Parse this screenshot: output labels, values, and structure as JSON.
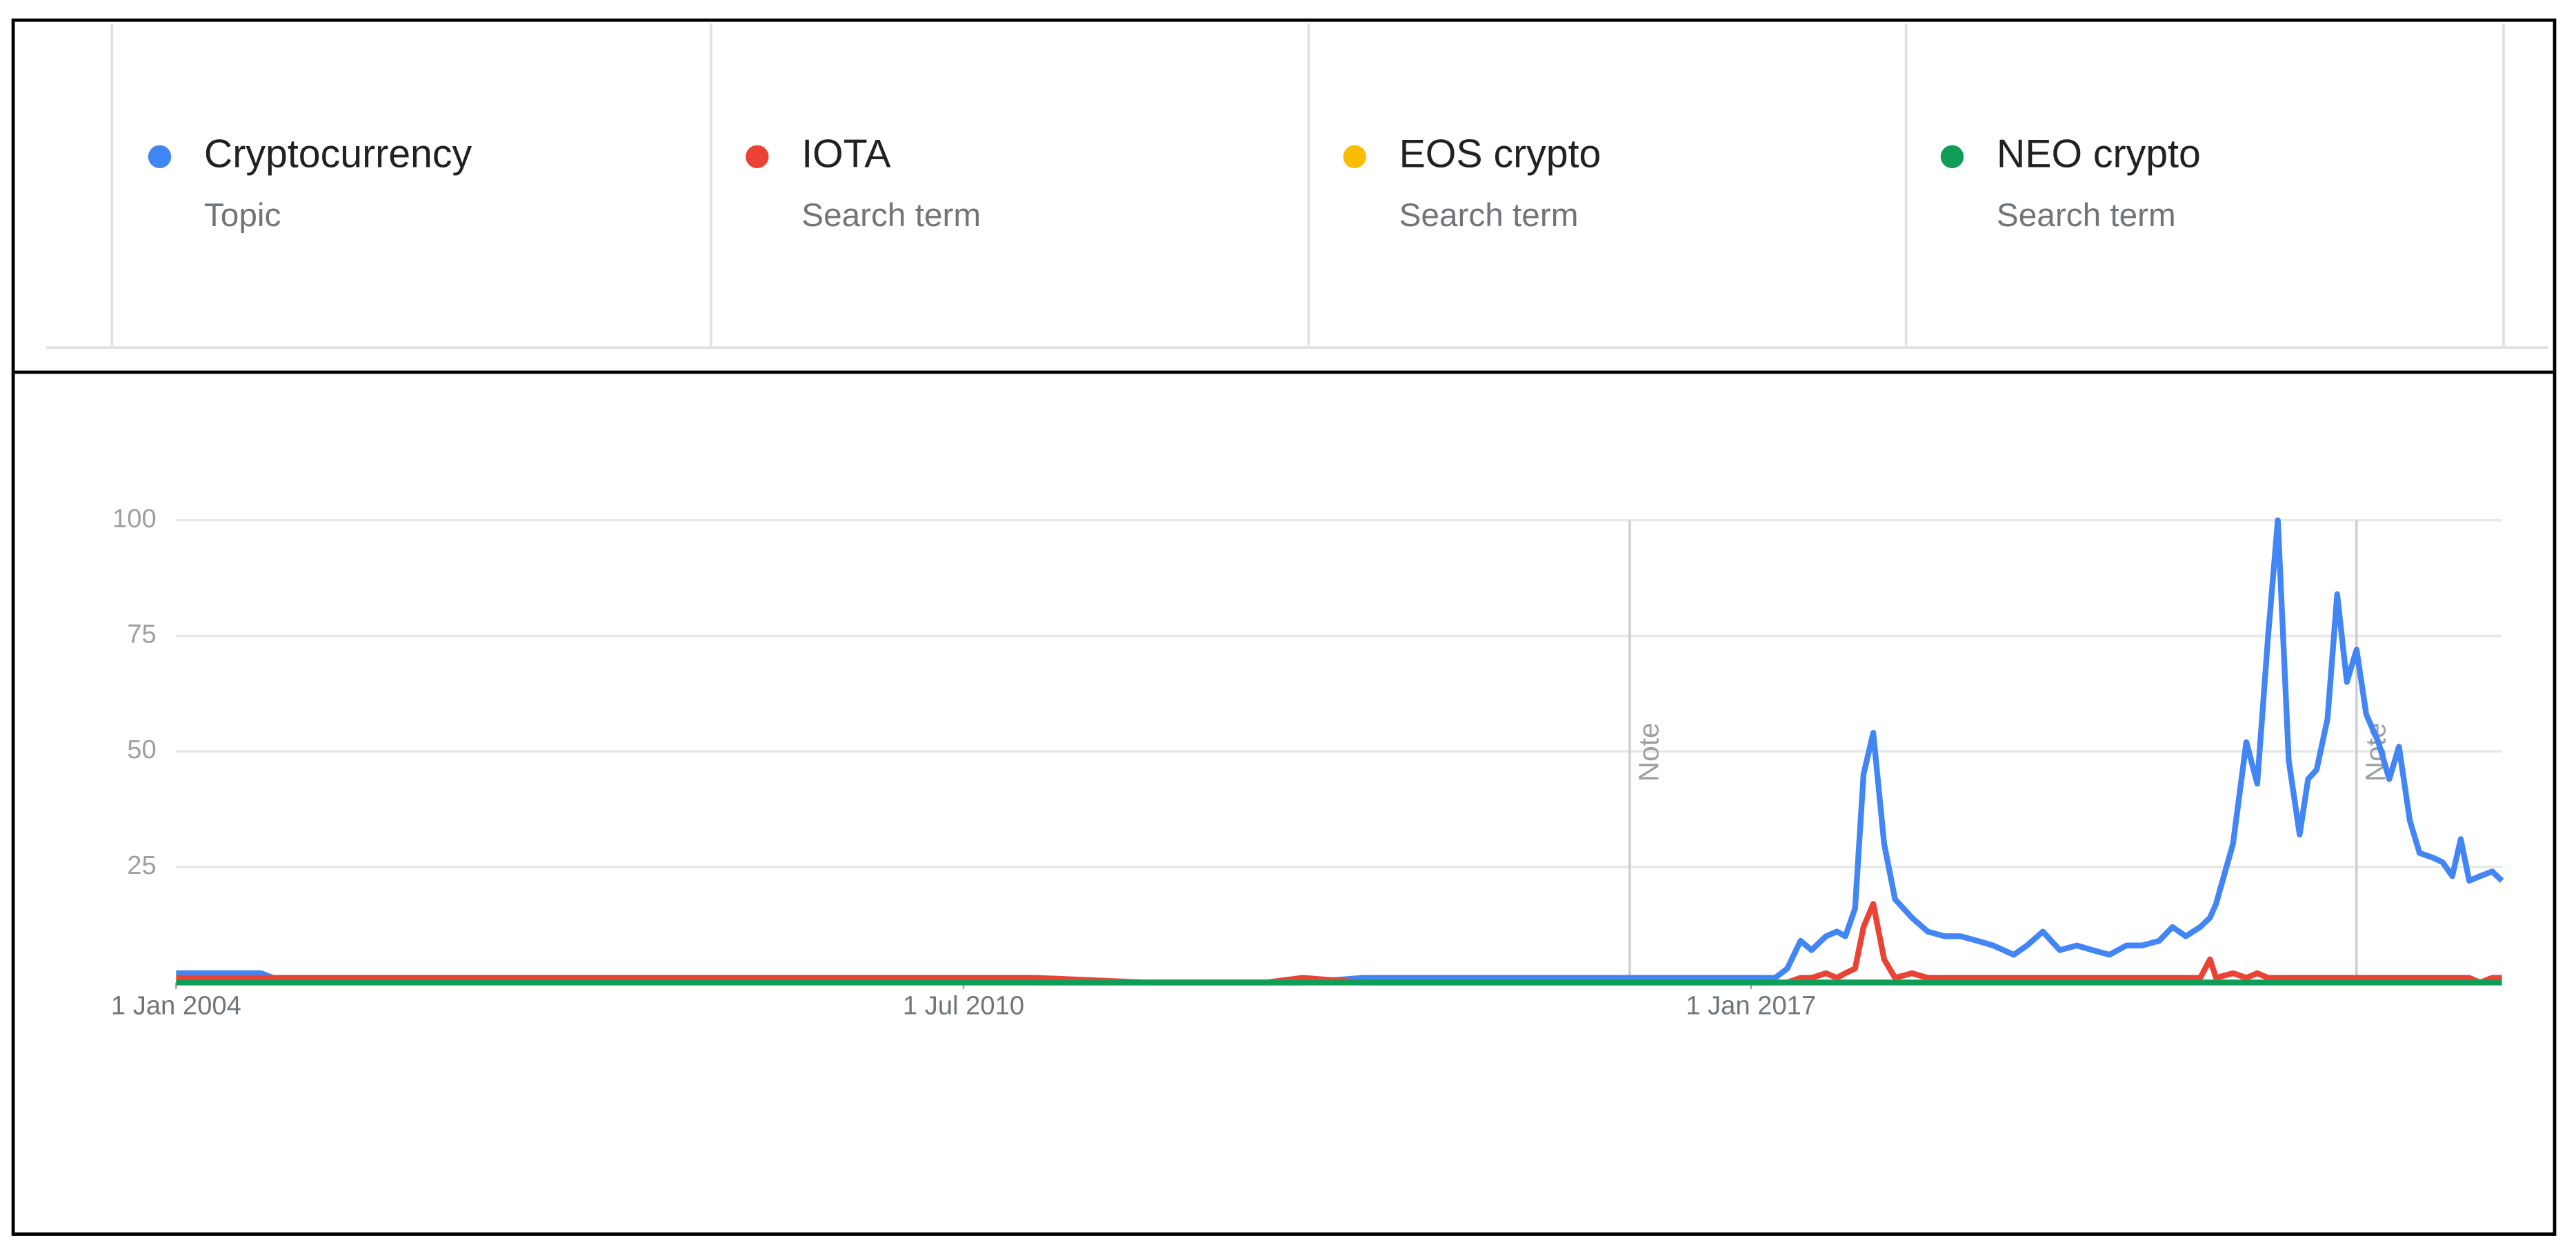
{
  "chart_data": {
    "type": "line",
    "x": [
      2004,
      2004.7,
      2004.8,
      2005,
      2006,
      2007,
      2008,
      2009,
      2010,
      2011,
      2011.1,
      2012,
      2013,
      2013.3,
      2013.8,
      2015,
      2016,
      2017,
      2017.2,
      2017.3,
      2017.41,
      2017.5,
      2017.62,
      2017.71,
      2017.78,
      2017.86,
      2017.93,
      2018.01,
      2018.1,
      2018.19,
      2018.33,
      2018.46,
      2018.6,
      2018.73,
      2018.87,
      2019.0,
      2019.17,
      2019.28,
      2019.41,
      2019.55,
      2019.69,
      2019.82,
      2019.96,
      2020.1,
      2020.23,
      2020.37,
      2020.48,
      2020.59,
      2020.71,
      2020.79,
      2020.84,
      2020.98,
      2021.09,
      2021.18,
      2021.27,
      2021.35,
      2021.44,
      2021.53,
      2021.6,
      2021.67,
      2021.76,
      2021.84,
      2021.92,
      2022.0,
      2022.08,
      2022.18,
      2022.27,
      2022.35,
      2022.44,
      2022.52,
      2022.63,
      2022.71,
      2022.79,
      2022.86,
      2022.93,
      2023.02,
      2023.12,
      2023.2
    ],
    "series": [
      {
        "name": "Cryptocurrency",
        "subtitle": "Topic",
        "color": "#4285f4",
        "values": [
          2,
          2,
          1,
          1,
          1,
          1,
          1,
          1,
          1,
          1,
          0,
          0,
          0,
          0,
          1,
          1,
          1,
          1,
          1,
          3,
          9,
          7,
          10,
          11,
          10,
          16,
          45,
          54,
          30,
          18,
          14,
          11,
          10,
          10,
          9,
          8,
          6,
          8,
          11,
          7,
          8,
          7,
          6,
          8,
          8,
          9,
          12,
          10,
          12,
          14,
          17,
          30,
          52,
          43,
          75,
          100,
          48,
          32,
          44,
          46,
          57,
          84,
          65,
          72,
          58,
          52,
          44,
          51,
          35,
          28,
          27,
          26,
          23,
          31,
          22,
          23,
          24,
          22
        ]
      },
      {
        "name": "IOTA",
        "subtitle": "Search term",
        "color": "#ea4335",
        "values": [
          1,
          1,
          1,
          1,
          1,
          1,
          1,
          1,
          1,
          1,
          1,
          0,
          0,
          1,
          0,
          0,
          0,
          0,
          0,
          0,
          1,
          1,
          2,
          1,
          2,
          3,
          12,
          17,
          5,
          1,
          2,
          1,
          1,
          1,
          1,
          1,
          1,
          1,
          1,
          1,
          1,
          1,
          1,
          1,
          1,
          1,
          1,
          1,
          1,
          5,
          1,
          2,
          1,
          2,
          1,
          1,
          1,
          1,
          1,
          1,
          1,
          1,
          1,
          1,
          1,
          1,
          1,
          1,
          1,
          1,
          1,
          1,
          1,
          1,
          1,
          0,
          1,
          1
        ]
      },
      {
        "name": "EOS crypto",
        "subtitle": "Search term",
        "color": "#fbbc04",
        "values": [
          0,
          0,
          0,
          0,
          0,
          0,
          0,
          0,
          0,
          0,
          0,
          0,
          0,
          0,
          0,
          0,
          0,
          0,
          0,
          0,
          0,
          0,
          0,
          0,
          0,
          0,
          0,
          0,
          0,
          0,
          0,
          0,
          0,
          0,
          0,
          0,
          0,
          0,
          0,
          0,
          0,
          0,
          0,
          0,
          0,
          0,
          0,
          0,
          0,
          0,
          0,
          0,
          0,
          0,
          0,
          0,
          0,
          0,
          0,
          0,
          0,
          0,
          0,
          0,
          0,
          0,
          0,
          0,
          0,
          0,
          0,
          0,
          0,
          0,
          0,
          0,
          0,
          0
        ]
      },
      {
        "name": "NEO crypto",
        "subtitle": "Search term",
        "color": "#0f9d58",
        "values": [
          0,
          0,
          0,
          0,
          0,
          0,
          0,
          0,
          0,
          0,
          0,
          0,
          0,
          0,
          0,
          0,
          0,
          0,
          0,
          0,
          0,
          0,
          0,
          0,
          0,
          0,
          0,
          0,
          0,
          0,
          0,
          0,
          0,
          0,
          0,
          0,
          0,
          0,
          0,
          0,
          0,
          0,
          0,
          0,
          0,
          0,
          0,
          0,
          0,
          0,
          0,
          0,
          0,
          0,
          0,
          0,
          0,
          0,
          0,
          0,
          0,
          0,
          0,
          0,
          0,
          0,
          0,
          0,
          0,
          0,
          0,
          0,
          0,
          0,
          0,
          0,
          0,
          0
        ]
      }
    ],
    "xlim": [
      2004,
      2023.2
    ],
    "xticks": [
      {
        "value": 2004,
        "label": "1 Jan 2004"
      },
      {
        "value": 2010.5,
        "label": "1 Jul 2010"
      },
      {
        "value": 2017,
        "label": "1 Jan 2017"
      }
    ],
    "ylim": [
      0,
      100
    ],
    "yticks": [
      25,
      50,
      75,
      100
    ],
    "grid": true,
    "annotations": [
      {
        "x": 2016,
        "label": "Note"
      },
      {
        "x": 2022,
        "label": "Note"
      }
    ]
  }
}
